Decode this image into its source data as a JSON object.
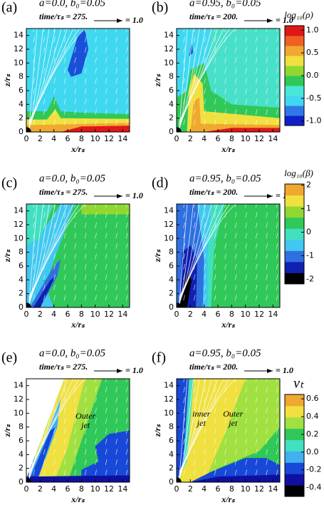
{
  "chart_data": [
    {
      "type": "heatmap",
      "label": "(a)",
      "title": "a=0.0, b₀=0.05",
      "subtitle": "time/τₛ =  275.",
      "arrow_label": "= 1.0",
      "xlabel": "x/rₛ",
      "ylabel": "z/rₛ",
      "xlim": [
        0,
        15
      ],
      "xticks": [
        0,
        2,
        4,
        6,
        8,
        10,
        12,
        14
      ],
      "ylim": [
        0,
        15
      ],
      "yticks": [
        0,
        2,
        4,
        6,
        8,
        10,
        12,
        14
      ]
    },
    {
      "type": "heatmap",
      "label": "(b)",
      "title": "a=0.95, b₀=0.05",
      "subtitle": "time/τₛ =  200.",
      "arrow_label": "= 1.0",
      "xlabel": "x/rₛ",
      "ylabel": "z/rₛ",
      "xlim": [
        0,
        15
      ],
      "xticks": [
        0,
        2,
        4,
        6,
        8,
        10,
        12,
        14
      ],
      "ylim": [
        0,
        15
      ],
      "yticks": [
        0,
        2,
        4,
        6,
        8,
        10,
        12,
        14
      ],
      "colorbar": {
        "label": "log₁₀(ρ)",
        "ylim": [
          -1.1,
          1.1
        ],
        "yticks": [
          {
            "value": -1,
            "label": "-1.0"
          },
          {
            "value": -0.5,
            "label": "-0.5"
          },
          {
            "value": 0,
            "label": "0.0"
          },
          {
            "value": 0.5,
            "label": "0.5"
          },
          {
            "value": 1,
            "label": "1.0"
          }
        ],
        "colors": [
          "#1020c8",
          "#2f78e8",
          "#40d8f0",
          "#48e8d8",
          "#30c858",
          "#90d830",
          "#f0e040",
          "#f0a830",
          "#f06020",
          "#e01818"
        ]
      }
    },
    {
      "type": "heatmap",
      "label": "(c)",
      "title": "a=0.0, b₀=0.05",
      "subtitle": "time/τₛ =  275.",
      "arrow_label": "= 1.0",
      "xlabel": "x/rₛ",
      "ylabel": "z/rₛ",
      "xlim": [
        0,
        15
      ],
      "xticks": [
        0,
        2,
        4,
        6,
        8,
        10,
        12,
        14
      ],
      "ylim": [
        0,
        15
      ],
      "yticks": [
        0,
        2,
        4,
        6,
        8,
        10,
        12,
        14
      ]
    },
    {
      "type": "heatmap",
      "label": "(d)",
      "title": "a=0.95, b₀=0.05",
      "subtitle": "time/τₛ =  200.",
      "arrow_label": "= 1.0",
      "xlabel": "x/rₛ",
      "ylabel": "z/rₛ",
      "xlim": [
        0,
        15
      ],
      "xticks": [
        0,
        2,
        4,
        6,
        8,
        10,
        12,
        14
      ],
      "ylim": [
        0,
        15
      ],
      "yticks": [
        0,
        2,
        4,
        6,
        8,
        10,
        12,
        14
      ],
      "colorbar": {
        "label": "log₁₀(β)",
        "ylim": [
          -2.2,
          2.05
        ],
        "yticks": [
          -2,
          -1,
          0,
          1,
          2
        ],
        "colors": [
          "#000000",
          "#1020b0",
          "#2f70e0",
          "#40c8f0",
          "#40e0c0",
          "#30c858",
          "#90d830",
          "#f0e040",
          "#f0a830"
        ]
      }
    },
    {
      "type": "heatmap",
      "label": "(e)",
      "title": "a=0.0, b₀=0.05",
      "subtitle": "time/τₛ =  275.",
      "arrow_label": "= 1.0",
      "xlabel": "x/rₛ",
      "ylabel": "z/rₛ",
      "xlim": [
        0,
        15
      ],
      "xticks": [
        0,
        2,
        4,
        6,
        8,
        10,
        12,
        14
      ],
      "ylim": [
        0,
        15
      ],
      "yticks": [
        0,
        2,
        4,
        6,
        8,
        10,
        12,
        14
      ],
      "annotations": [
        [
          "Outer",
          "jet"
        ]
      ]
    },
    {
      "type": "heatmap",
      "label": "(f)",
      "title": "a=0.95, b₀=0.05",
      "subtitle": "time/τₛ =  200.",
      "arrow_label": "= 1.0",
      "xlabel": "x/rₛ",
      "ylabel": "z/rₛ",
      "xlim": [
        0,
        15
      ],
      "xticks": [
        0,
        2,
        4,
        6,
        8,
        10,
        12,
        14
      ],
      "ylim": [
        0,
        15
      ],
      "yticks": [
        0,
        2,
        4,
        6,
        8,
        10,
        12,
        14
      ],
      "annotations": [
        [
          "inner",
          "jet"
        ],
        [
          "Outer",
          "jet"
        ]
      ],
      "colorbar": {
        "label": "vₜ",
        "ylim": [
          -0.5,
          0.65
        ],
        "yticks": [
          {
            "value": -0.4,
            "label": "-0.4"
          },
          {
            "value": -0.2,
            "label": "-0.2"
          },
          {
            "value": 0,
            "label": "0.0"
          },
          {
            "value": 0.2,
            "label": "0.2"
          },
          {
            "value": 0.4,
            "label": "0.4"
          },
          {
            "value": 0.6,
            "label": "0.6"
          }
        ],
        "colors": [
          "#000000",
          "#1010a0",
          "#1848d8",
          "#40b0f0",
          "#40e0c0",
          "#30c858",
          "#a0e040",
          "#f0e040",
          "#f0a830"
        ]
      }
    }
  ]
}
